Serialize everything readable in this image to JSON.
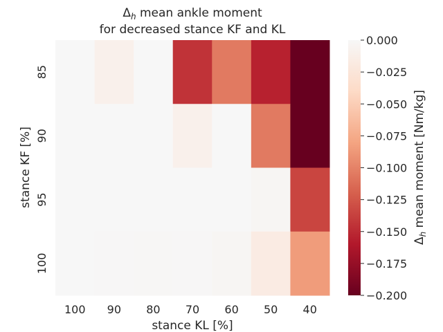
{
  "chart_data": {
    "type": "heatmap",
    "title_lines": [
      "Δh mean ankle moment",
      "for decreased stance KF and KL"
    ],
    "xlabel": "stance KL [%]",
    "ylabel": "stance KF [%]",
    "x_categories": [
      "100",
      "90",
      "80",
      "70",
      "60",
      "50",
      "40"
    ],
    "y_categories": [
      "85",
      "90",
      "95",
      "100"
    ],
    "values": [
      [
        0.0,
        -0.01,
        0.0,
        -0.145,
        -0.105,
        -0.155,
        -0.2
      ],
      [
        0.0,
        0.0,
        0.0,
        -0.01,
        0.0,
        -0.105,
        -0.2
      ],
      [
        0.0,
        0.0,
        0.0,
        0.0,
        0.0,
        -0.003,
        -0.135
      ],
      [
        0.0,
        -0.001,
        -0.002,
        -0.001,
        -0.003,
        -0.017,
        -0.085
      ]
    ],
    "colorbar": {
      "label": "Δh mean moment [Nm/kg]",
      "vmin": -0.2,
      "vmax": 0.0,
      "ticks": [
        "0.000",
        "−0.025",
        "−0.050",
        "−0.075",
        "−0.100",
        "−0.125",
        "−0.150",
        "−0.175",
        "−0.200"
      ],
      "tick_values": [
        0.0,
        -0.025,
        -0.05,
        -0.075,
        -0.1,
        -0.125,
        -0.15,
        -0.175,
        -0.2
      ]
    },
    "colormap": [
      "#67001f",
      "#b2182b",
      "#d6604d",
      "#f4a582",
      "#fddbc7",
      "#f7f7f7"
    ]
  }
}
